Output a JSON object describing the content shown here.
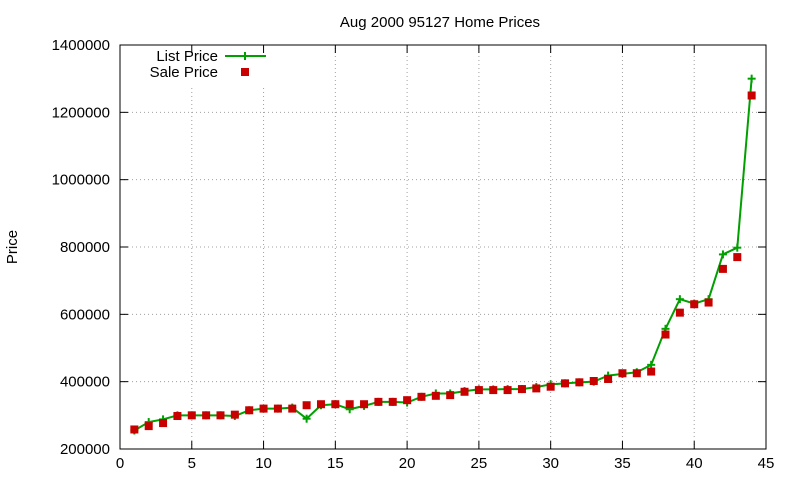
{
  "chart_data": {
    "type": "line",
    "title": "Aug 2000 95127 Home Prices",
    "xlabel": "",
    "ylabel": "Price",
    "xlim": [
      0,
      45
    ],
    "ylim": [
      200000,
      1400000
    ],
    "xticks": [
      0,
      5,
      10,
      15,
      20,
      25,
      30,
      35,
      40,
      45
    ],
    "yticks": [
      200000,
      400000,
      600000,
      800000,
      1000000,
      1200000,
      1400000
    ],
    "grid": true,
    "legend_position": "top-left",
    "x": [
      1,
      2,
      3,
      4,
      5,
      6,
      7,
      8,
      9,
      10,
      11,
      12,
      13,
      14,
      15,
      16,
      17,
      18,
      19,
      20,
      21,
      22,
      23,
      24,
      25,
      26,
      27,
      28,
      29,
      30,
      31,
      32,
      33,
      34,
      35,
      36,
      37,
      38,
      39,
      40,
      41,
      42,
      43,
      44
    ],
    "series": [
      {
        "name": "List Price",
        "style": "linespoints",
        "color": "#00a000",
        "values": [
          255000,
          280000,
          288000,
          300000,
          300000,
          300000,
          300000,
          298000,
          315000,
          320000,
          320000,
          323000,
          290000,
          330000,
          333000,
          318000,
          328000,
          340000,
          340000,
          338000,
          355000,
          365000,
          365000,
          372000,
          377000,
          377000,
          378000,
          378000,
          384000,
          392000,
          395000,
          398000,
          400000,
          418000,
          423000,
          428000,
          450000,
          557000,
          645000,
          632000,
          645000,
          778000,
          798000,
          1300000
        ]
      },
      {
        "name": "Sale Price",
        "style": "points",
        "color": "#c80000",
        "values": [
          258000,
          268000,
          277000,
          298000,
          300000,
          300000,
          300000,
          302000,
          315000,
          320000,
          320000,
          320000,
          330000,
          333000,
          333000,
          333000,
          333000,
          340000,
          340000,
          345000,
          355000,
          358000,
          360000,
          370000,
          375000,
          375000,
          375000,
          378000,
          380000,
          385000,
          395000,
          398000,
          402000,
          408000,
          425000,
          425000,
          430000,
          540000,
          605000,
          630000,
          635000,
          735000,
          770000,
          1250000
        ]
      }
    ]
  }
}
